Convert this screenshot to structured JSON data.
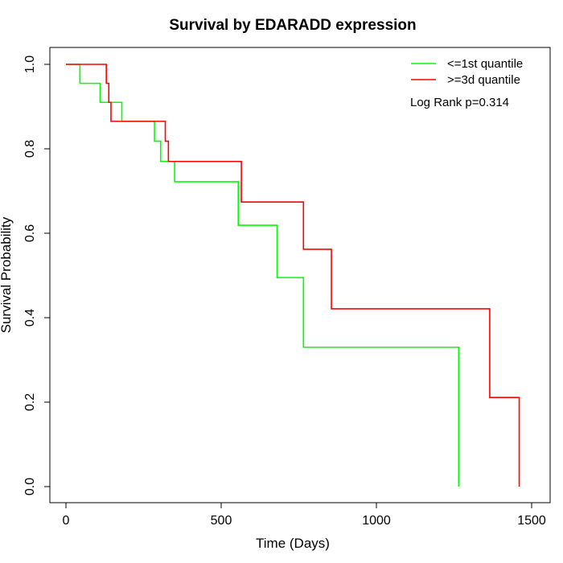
{
  "chart_data": {
    "type": "line",
    "title": "Survival by EDARADD expression",
    "xlabel": "Time (Days)",
    "ylabel": "Survival Probability",
    "xlim": [
      0,
      1500
    ],
    "ylim": [
      0,
      1
    ],
    "xticks": [
      "0",
      "500",
      "1000",
      "1500"
    ],
    "yticks": [
      "0.0",
      "0.2",
      "0.4",
      "0.6",
      "0.8",
      "1.0"
    ],
    "grid": false,
    "legend_position": "top-right",
    "annotation": "Log Rank p=0.314",
    "series": [
      {
        "name": "<=1st quantile",
        "color": "#00ff00",
        "steps": [
          [
            0,
            1.0
          ],
          [
            45,
            0.955
          ],
          [
            110,
            0.91
          ],
          [
            180,
            0.865
          ],
          [
            285,
            0.818
          ],
          [
            305,
            0.77
          ],
          [
            350,
            0.722
          ],
          [
            555,
            0.619
          ],
          [
            680,
            0.495
          ],
          [
            765,
            0.33
          ],
          [
            1265,
            0.0
          ]
        ]
      },
      {
        "name": ">=3d quantile",
        "color": "#ff0000",
        "steps": [
          [
            0,
            1.0
          ],
          [
            130,
            0.955
          ],
          [
            138,
            0.91
          ],
          [
            145,
            0.865
          ],
          [
            320,
            0.818
          ],
          [
            330,
            0.77
          ],
          [
            565,
            0.674
          ],
          [
            765,
            0.562
          ],
          [
            855,
            0.421
          ],
          [
            1365,
            0.211
          ],
          [
            1460,
            0.0
          ]
        ]
      }
    ]
  }
}
